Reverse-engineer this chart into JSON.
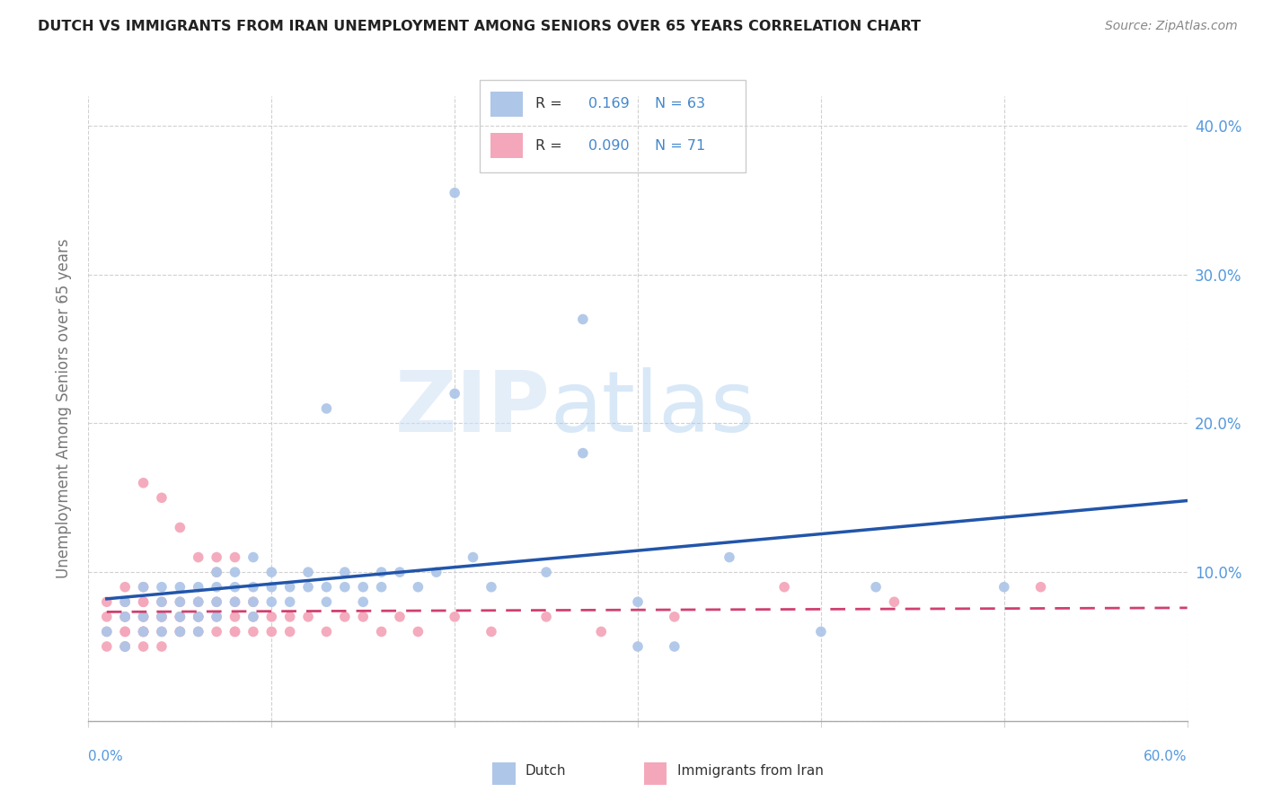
{
  "title": "DUTCH VS IMMIGRANTS FROM IRAN UNEMPLOYMENT AMONG SENIORS OVER 65 YEARS CORRELATION CHART",
  "source": "Source: ZipAtlas.com",
  "ylabel": "Unemployment Among Seniors over 65 years",
  "xlim": [
    0.0,
    0.6
  ],
  "ylim": [
    0.0,
    0.42
  ],
  "yticks": [
    0.0,
    0.1,
    0.2,
    0.3,
    0.4
  ],
  "ytick_labels": [
    "",
    "10.0%",
    "20.0%",
    "30.0%",
    "40.0%"
  ],
  "xticks": [
    0.0,
    0.1,
    0.2,
    0.3,
    0.4,
    0.5,
    0.6
  ],
  "dutch_R": 0.169,
  "dutch_N": 63,
  "iran_R": 0.09,
  "iran_N": 71,
  "dutch_color": "#aec6e8",
  "dutch_line_color": "#2255aa",
  "iran_color": "#f4a7bb",
  "iran_line_color": "#d04070",
  "dutch_scatter_x": [
    0.01,
    0.02,
    0.02,
    0.02,
    0.03,
    0.03,
    0.03,
    0.04,
    0.04,
    0.04,
    0.04,
    0.05,
    0.05,
    0.05,
    0.05,
    0.06,
    0.06,
    0.06,
    0.06,
    0.07,
    0.07,
    0.07,
    0.07,
    0.08,
    0.08,
    0.08,
    0.09,
    0.09,
    0.09,
    0.09,
    0.1,
    0.1,
    0.1,
    0.11,
    0.11,
    0.12,
    0.12,
    0.13,
    0.13,
    0.14,
    0.14,
    0.15,
    0.15,
    0.16,
    0.16,
    0.17,
    0.18,
    0.19,
    0.2,
    0.21,
    0.22,
    0.25,
    0.27,
    0.3,
    0.32,
    0.35,
    0.4,
    0.43,
    0.5,
    0.27,
    0.2,
    0.13,
    0.3
  ],
  "dutch_scatter_y": [
    0.06,
    0.07,
    0.05,
    0.08,
    0.06,
    0.07,
    0.09,
    0.06,
    0.08,
    0.07,
    0.09,
    0.07,
    0.08,
    0.06,
    0.09,
    0.07,
    0.08,
    0.09,
    0.06,
    0.08,
    0.09,
    0.1,
    0.07,
    0.09,
    0.08,
    0.1,
    0.08,
    0.09,
    0.07,
    0.11,
    0.08,
    0.09,
    0.1,
    0.09,
    0.08,
    0.09,
    0.1,
    0.09,
    0.08,
    0.09,
    0.1,
    0.09,
    0.08,
    0.1,
    0.09,
    0.1,
    0.09,
    0.1,
    0.22,
    0.11,
    0.09,
    0.1,
    0.18,
    0.08,
    0.05,
    0.11,
    0.06,
    0.09,
    0.09,
    0.27,
    0.355,
    0.21,
    0.05
  ],
  "iran_scatter_x": [
    0.01,
    0.01,
    0.01,
    0.01,
    0.02,
    0.02,
    0.02,
    0.02,
    0.02,
    0.02,
    0.02,
    0.02,
    0.03,
    0.03,
    0.03,
    0.03,
    0.03,
    0.03,
    0.03,
    0.03,
    0.03,
    0.04,
    0.04,
    0.04,
    0.04,
    0.04,
    0.04,
    0.05,
    0.05,
    0.05,
    0.05,
    0.05,
    0.05,
    0.06,
    0.06,
    0.06,
    0.06,
    0.06,
    0.07,
    0.07,
    0.07,
    0.07,
    0.07,
    0.08,
    0.08,
    0.08,
    0.08,
    0.08,
    0.09,
    0.09,
    0.09,
    0.1,
    0.1,
    0.11,
    0.11,
    0.12,
    0.13,
    0.14,
    0.15,
    0.16,
    0.17,
    0.18,
    0.2,
    0.22,
    0.25,
    0.28,
    0.32,
    0.38,
    0.44,
    0.52,
    0.03
  ],
  "iran_scatter_y": [
    0.06,
    0.07,
    0.05,
    0.08,
    0.06,
    0.07,
    0.05,
    0.08,
    0.06,
    0.09,
    0.07,
    0.05,
    0.06,
    0.07,
    0.08,
    0.05,
    0.06,
    0.07,
    0.08,
    0.09,
    0.06,
    0.07,
    0.06,
    0.08,
    0.05,
    0.07,
    0.15,
    0.06,
    0.07,
    0.08,
    0.06,
    0.07,
    0.13,
    0.07,
    0.06,
    0.08,
    0.11,
    0.07,
    0.08,
    0.06,
    0.07,
    0.1,
    0.11,
    0.07,
    0.06,
    0.08,
    0.06,
    0.11,
    0.07,
    0.06,
    0.08,
    0.07,
    0.06,
    0.07,
    0.06,
    0.07,
    0.06,
    0.07,
    0.07,
    0.06,
    0.07,
    0.06,
    0.07,
    0.06,
    0.07,
    0.06,
    0.07,
    0.09,
    0.08,
    0.09,
    0.16
  ]
}
